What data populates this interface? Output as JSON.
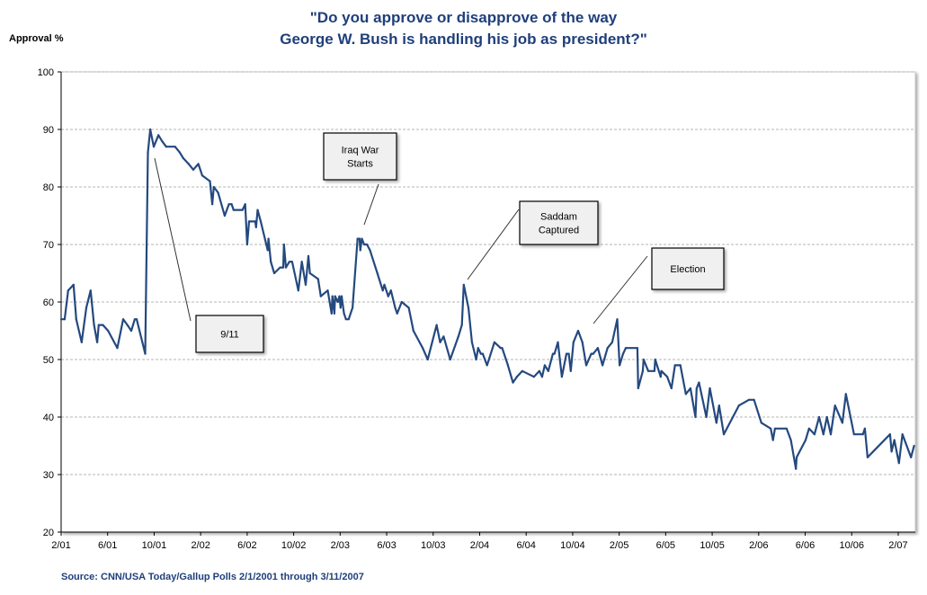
{
  "chart_data": {
    "type": "line",
    "title": [
      "\"Do you approve or disapprove of the way",
      "George W. Bush is handling his job as president?\""
    ],
    "ylabel": "Approval %",
    "xlabel": "",
    "ylim": [
      20,
      100
    ],
    "yticks": [
      "20",
      "30",
      "40",
      "50",
      "60",
      "70",
      "80",
      "90",
      "100"
    ],
    "xticks": [
      {
        "label": "2/01",
        "date": "2001-02-01"
      },
      {
        "label": "6/01",
        "date": "2001-06-01"
      },
      {
        "label": "10/01",
        "date": "2001-10-01"
      },
      {
        "label": "2/02",
        "date": "2002-02-01"
      },
      {
        "label": "6/02",
        "date": "2002-06-01"
      },
      {
        "label": "10/02",
        "date": "2002-10-01"
      },
      {
        "label": "2/03",
        "date": "2003-02-01"
      },
      {
        "label": "6/03",
        "date": "2003-06-01"
      },
      {
        "label": "10/03",
        "date": "2003-10-01"
      },
      {
        "label": "2/04",
        "date": "2004-02-01"
      },
      {
        "label": "6/04",
        "date": "2004-06-01"
      },
      {
        "label": "10/04",
        "date": "2004-10-01"
      },
      {
        "label": "2/05",
        "date": "2005-02-01"
      },
      {
        "label": "6/05",
        "date": "2005-06-01"
      },
      {
        "label": "10/05",
        "date": "2005-10-01"
      },
      {
        "label": "2/06",
        "date": "2006-02-01"
      },
      {
        "label": "6/06",
        "date": "2006-06-01"
      },
      {
        "label": "10/06",
        "date": "2006-10-01"
      },
      {
        "label": "2/07",
        "date": "2007-02-01"
      }
    ],
    "grid": true,
    "line_color": "#24497f",
    "series": [
      {
        "points": [
          [
            "2001-02-01",
            57
          ],
          [
            "2001-02-10",
            57
          ],
          [
            "2001-02-19",
            62
          ],
          [
            "2001-03-03",
            63
          ],
          [
            "2001-03-10",
            57
          ],
          [
            "2001-03-24",
            53
          ],
          [
            "2001-04-06",
            59
          ],
          [
            "2001-04-17",
            62
          ],
          [
            "2001-04-26",
            56
          ],
          [
            "2001-05-04",
            53
          ],
          [
            "2001-05-08",
            56
          ],
          [
            "2001-05-19",
            56
          ],
          [
            "2001-06-02",
            55
          ],
          [
            "2001-06-26",
            52
          ],
          [
            "2001-07-11",
            57
          ],
          [
            "2001-07-22",
            56
          ],
          [
            "2001-08-02",
            55
          ],
          [
            "2001-08-11",
            57
          ],
          [
            "2001-08-16",
            57
          ],
          [
            "2001-09-08",
            51
          ],
          [
            "2001-09-15",
            86
          ],
          [
            "2001-09-21",
            90
          ],
          [
            "2001-09-30",
            87
          ],
          [
            "2001-10-12",
            89
          ],
          [
            "2001-10-21",
            88
          ],
          [
            "2001-11-02",
            87
          ],
          [
            "2001-11-25",
            87
          ],
          [
            "2001-12-07",
            86
          ],
          [
            "2001-12-16",
            85
          ],
          [
            "2001-12-30",
            84
          ],
          [
            "2002-01-12",
            83
          ],
          [
            "2002-01-25",
            84
          ],
          [
            "2002-02-05",
            82
          ],
          [
            "2002-02-25",
            81
          ],
          [
            "2002-03-01",
            77
          ],
          [
            "2002-03-05",
            80
          ],
          [
            "2002-03-16",
            79
          ],
          [
            "2002-04-03",
            75
          ],
          [
            "2002-04-14",
            77
          ],
          [
            "2002-04-21",
            77
          ],
          [
            "2002-04-26",
            76
          ],
          [
            "2002-05-19",
            76
          ],
          [
            "2002-05-26",
            77
          ],
          [
            "2002-06-01",
            70
          ],
          [
            "2002-06-06",
            74
          ],
          [
            "2002-06-22",
            74
          ],
          [
            "2002-06-24",
            73
          ],
          [
            "2002-06-28",
            76
          ],
          [
            "2002-07-06",
            74
          ],
          [
            "2002-07-24",
            69
          ],
          [
            "2002-07-26",
            71
          ],
          [
            "2002-08-02",
            67
          ],
          [
            "2002-08-11",
            65
          ],
          [
            "2002-08-26",
            66
          ],
          [
            "2002-09-04",
            66
          ],
          [
            "2002-09-06",
            70
          ],
          [
            "2002-09-11",
            66
          ],
          [
            "2002-09-20",
            67
          ],
          [
            "2002-09-27",
            67
          ],
          [
            "2002-10-13",
            62
          ],
          [
            "2002-10-22",
            67
          ],
          [
            "2002-11-02",
            63
          ],
          [
            "2002-11-09",
            68
          ],
          [
            "2002-11-13",
            65
          ],
          [
            "2002-12-04",
            64
          ],
          [
            "2002-12-11",
            61
          ],
          [
            "2002-12-29",
            62
          ],
          [
            "2003-01-09",
            58
          ],
          [
            "2003-01-11",
            61
          ],
          [
            "2003-01-16",
            58
          ],
          [
            "2003-01-18",
            61
          ],
          [
            "2003-01-25",
            60
          ],
          [
            "2003-01-29",
            61
          ],
          [
            "2003-02-02",
            59
          ],
          [
            "2003-02-05",
            61
          ],
          [
            "2003-02-11",
            58
          ],
          [
            "2003-02-16",
            57
          ],
          [
            "2003-02-23",
            57
          ],
          [
            "2003-03-03",
            59
          ],
          [
            "2003-03-16",
            71
          ],
          [
            "2003-03-21",
            71
          ],
          [
            "2003-03-23",
            69
          ],
          [
            "2003-03-27",
            71
          ],
          [
            "2003-04-03",
            70
          ],
          [
            "2003-04-10",
            70
          ],
          [
            "2003-04-18",
            69
          ],
          [
            "2003-05-07",
            65
          ],
          [
            "2003-05-21",
            62
          ],
          [
            "2003-05-25",
            63
          ],
          [
            "2003-06-05",
            61
          ],
          [
            "2003-06-12",
            62
          ],
          [
            "2003-06-23",
            59
          ],
          [
            "2003-06-28",
            58
          ],
          [
            "2003-07-10",
            60
          ],
          [
            "2003-07-28",
            59
          ],
          [
            "2003-08-10",
            55
          ],
          [
            "2003-09-04",
            52
          ],
          [
            "2003-09-17",
            50
          ],
          [
            "2003-10-10",
            56
          ],
          [
            "2003-10-19",
            53
          ],
          [
            "2003-10-28",
            54
          ],
          [
            "2003-11-15",
            50
          ],
          [
            "2003-12-06",
            54
          ],
          [
            "2003-12-15",
            56
          ],
          [
            "2003-12-20",
            63
          ],
          [
            "2004-01-02",
            59
          ],
          [
            "2004-01-11",
            53
          ],
          [
            "2004-01-22",
            50
          ],
          [
            "2004-01-27",
            52
          ],
          [
            "2004-02-04",
            51
          ],
          [
            "2004-02-09",
            51
          ],
          [
            "2004-02-20",
            49
          ],
          [
            "2004-03-09",
            53
          ],
          [
            "2004-03-25",
            52
          ],
          [
            "2004-03-29",
            52
          ],
          [
            "2004-04-14",
            49
          ],
          [
            "2004-04-27",
            46
          ],
          [
            "2004-05-07",
            47
          ],
          [
            "2004-05-21",
            48
          ],
          [
            "2004-06-21",
            47
          ],
          [
            "2004-07-05",
            48
          ],
          [
            "2004-07-12",
            47
          ],
          [
            "2004-07-19",
            49
          ],
          [
            "2004-07-28",
            48
          ],
          [
            "2004-08-10",
            51
          ],
          [
            "2004-08-14",
            51
          ],
          [
            "2004-08-23",
            53
          ],
          [
            "2004-09-03",
            47
          ],
          [
            "2004-09-15",
            51
          ],
          [
            "2004-09-21",
            51
          ],
          [
            "2004-09-26",
            48
          ],
          [
            "2004-10-03",
            53
          ],
          [
            "2004-10-15",
            55
          ],
          [
            "2004-10-26",
            53
          ],
          [
            "2004-11-06",
            49
          ],
          [
            "2004-11-19",
            51
          ],
          [
            "2004-11-24",
            51
          ],
          [
            "2004-12-06",
            52
          ],
          [
            "2004-12-18",
            49
          ],
          [
            "2005-01-01",
            52
          ],
          [
            "2005-01-13",
            53
          ],
          [
            "2005-01-26",
            57
          ],
          [
            "2005-02-02",
            49
          ],
          [
            "2005-02-11",
            51
          ],
          [
            "2005-02-18",
            52
          ],
          [
            "2005-03-18",
            52
          ],
          [
            "2005-03-20",
            45
          ],
          [
            "2005-04-02",
            48
          ],
          [
            "2005-04-04",
            50
          ],
          [
            "2005-04-16",
            48
          ],
          [
            "2005-05-02",
            48
          ],
          [
            "2005-05-04",
            50
          ],
          [
            "2005-05-18",
            47
          ],
          [
            "2005-05-20",
            48
          ],
          [
            "2005-06-05",
            47
          ],
          [
            "2005-06-16",
            45
          ],
          [
            "2005-06-25",
            49
          ],
          [
            "2005-07-09",
            49
          ],
          [
            "2005-07-23",
            44
          ],
          [
            "2005-08-05",
            45
          ],
          [
            "2005-08-18",
            40
          ],
          [
            "2005-08-21",
            45
          ],
          [
            "2005-08-27",
            46
          ],
          [
            "2005-09-16",
            40
          ],
          [
            "2005-09-25",
            45
          ],
          [
            "2005-10-12",
            39
          ],
          [
            "2005-10-19",
            42
          ],
          [
            "2005-11-01",
            37
          ],
          [
            "2005-12-10",
            42
          ],
          [
            "2006-01-06",
            43
          ],
          [
            "2006-01-19",
            43
          ],
          [
            "2006-02-08",
            39
          ],
          [
            "2006-03-02",
            38
          ],
          [
            "2006-03-08",
            36
          ],
          [
            "2006-03-13",
            38
          ],
          [
            "2006-04-13",
            38
          ],
          [
            "2006-04-24",
            36
          ],
          [
            "2006-05-07",
            31
          ],
          [
            "2006-05-09",
            33
          ],
          [
            "2006-06-02",
            36
          ],
          [
            "2006-06-11",
            38
          ],
          [
            "2006-06-25",
            37
          ],
          [
            "2006-07-07",
            40
          ],
          [
            "2006-07-18",
            37
          ],
          [
            "2006-07-27",
            40
          ],
          [
            "2006-08-07",
            37
          ],
          [
            "2006-08-18",
            42
          ],
          [
            "2006-09-07",
            39
          ],
          [
            "2006-09-16",
            44
          ],
          [
            "2006-10-07",
            37
          ],
          [
            "2006-10-30",
            37
          ],
          [
            "2006-11-05",
            38
          ],
          [
            "2006-11-12",
            33
          ],
          [
            "2007-01-10",
            37
          ],
          [
            "2007-01-14",
            34
          ],
          [
            "2007-01-21",
            36
          ],
          [
            "2007-02-03",
            32
          ],
          [
            "2007-02-12",
            37
          ],
          [
            "2007-03-04",
            33
          ],
          [
            "2007-03-12",
            35
          ]
        ]
      }
    ],
    "annotations": [
      {
        "lines": [
          "9/11"
        ]
      },
      {
        "lines": [
          "Iraq War",
          "Starts"
        ]
      },
      {
        "lines": [
          "Saddam",
          "Captured"
        ]
      },
      {
        "lines": [
          "Election"
        ]
      }
    ],
    "source": "Source: CNN/USA Today/Gallup Polls  2/1/2001 through 3/11/2007"
  }
}
